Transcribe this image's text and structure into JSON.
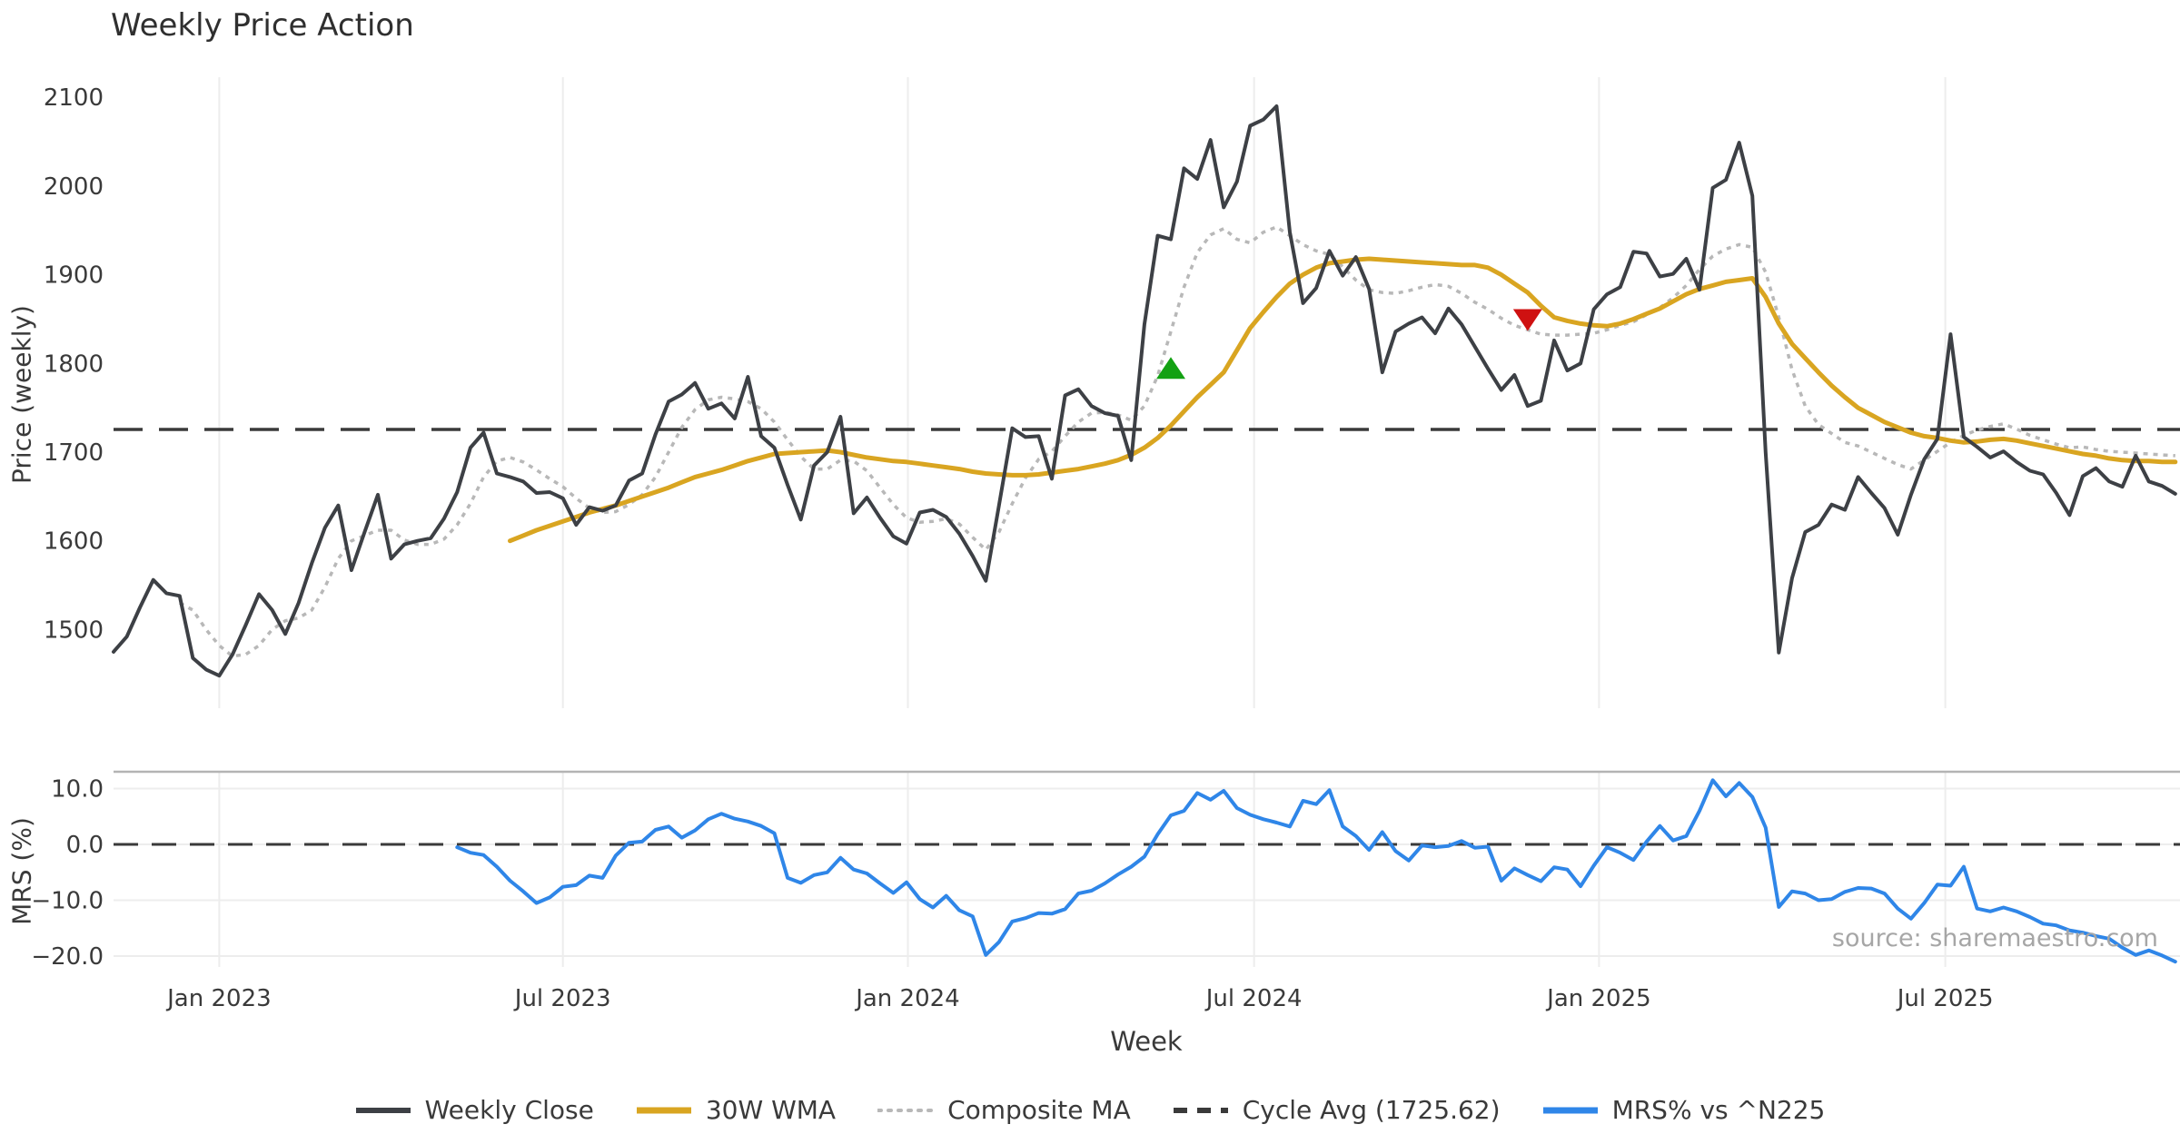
{
  "title": "Weekly Price Action",
  "source": "source: sharemaestro.com",
  "x_axis": {
    "label": "Week",
    "ticks": [
      {
        "label": "Jan 2023",
        "week": 0
      },
      {
        "label": "Jul 2023",
        "week": 26
      },
      {
        "label": "Jan 2024",
        "week": 52.1
      },
      {
        "label": "Jul 2024",
        "week": 78.3
      },
      {
        "label": "Jan 2025",
        "week": 104.4
      },
      {
        "label": "Jul 2025",
        "week": 130.6
      }
    ]
  },
  "legend": {
    "items": [
      {
        "label": "Weekly Close",
        "color": "#3d4045",
        "style": "solid"
      },
      {
        "label": "30W WMA",
        "color": "#d9a521",
        "style": "solid"
      },
      {
        "label": "Composite MA",
        "color": "#b8b8b8",
        "style": "dotted"
      },
      {
        "label": "Cycle Avg (1725.62)",
        "color": "#3a3a3a",
        "style": "dashed"
      },
      {
        "label": "MRS% vs ^N225",
        "color": "#2f86e8",
        "style": "solid"
      }
    ]
  },
  "colors": {
    "close": "#3d4045",
    "wma": "#d9a521",
    "composite": "#b8b8b8",
    "cycle": "#3a3a3a",
    "mrs": "#2f86e8",
    "buy_marker": "#13a113",
    "sell_marker": "#cf1111",
    "gridline": "#ededed",
    "spine": "#b4b4b4",
    "tick_text": "#3a3a3a"
  },
  "chart_data": [
    {
      "type": "line",
      "panel": "price",
      "title": "Weekly Price Action",
      "ylabel": "Price (weekly)",
      "ylim": [
        1411,
        2122
      ],
      "yticks": [
        {
          "v": 2100,
          "label": "2100"
        },
        {
          "v": 2000,
          "label": "2000"
        },
        {
          "v": 1900,
          "label": "1900"
        },
        {
          "v": 1800,
          "label": "1800"
        },
        {
          "v": 1700,
          "label": "1700"
        },
        {
          "v": 1600,
          "label": "1600"
        },
        {
          "v": 1500,
          "label": "1500"
        }
      ],
      "x_unit": "week index (0 = Jan 2023 tick)",
      "xlim": [
        -8,
        148
      ],
      "grid": "vertical-only",
      "series": [
        {
          "name": "Weekly Close",
          "style": "solid",
          "color": "#3d4045",
          "start_week": -8,
          "values": [
            1475,
            1492,
            1525,
            1556,
            1541,
            1538,
            1468,
            1455,
            1448,
            1472,
            1505,
            1540,
            1522,
            1495,
            1530,
            1575,
            1615,
            1640,
            1567,
            1610,
            1652,
            1580,
            1596,
            1600,
            1603,
            1625,
            1655,
            1705,
            1722,
            1676,
            1672,
            1667,
            1654,
            1655,
            1648,
            1618,
            1638,
            1634,
            1640,
            1668,
            1676,
            1720,
            1757,
            1765,
            1778,
            1749,
            1755,
            1738,
            1785,
            1718,
            1705,
            1663,
            1624,
            1685,
            1700,
            1740,
            1631,
            1649,
            1626,
            1605,
            1597,
            1632,
            1635,
            1627,
            1608,
            1583,
            1555,
            1640,
            1727,
            1717,
            1718,
            1670,
            1764,
            1771,
            1752,
            1744,
            1741,
            1691,
            1844,
            1944,
            1940,
            2020,
            2008,
            2052,
            1976,
            2005,
            2068,
            2075,
            2090,
            1948,
            1868,
            1885,
            1927,
            1899,
            1920,
            1884,
            1790,
            1836,
            1845,
            1852,
            1834,
            1862,
            1844,
            1819,
            1794,
            1770,
            1787,
            1752,
            1758,
            1826,
            1792,
            1800,
            1861,
            1878,
            1886,
            1926,
            1924,
            1898,
            1901,
            1918,
            1883,
            1998,
            2007,
            2049,
            1989,
            1700,
            1474,
            1558,
            1610,
            1618,
            1641,
            1635,
            1672,
            1654,
            1637,
            1607,
            1652,
            1692,
            1715,
            1833,
            1717,
            1706,
            1694,
            1701,
            1689,
            1679,
            1675,
            1654,
            1629,
            1673,
            1682,
            1667,
            1661,
            1696,
            1667,
            1662,
            1653
          ]
        },
        {
          "name": "30W WMA",
          "style": "solid",
          "color": "#d9a521",
          "start_week": 22,
          "values": [
            1600,
            1606,
            1612,
            1617,
            1622,
            1627,
            1632,
            1636,
            1640,
            1645,
            1650,
            1655,
            1660,
            1666,
            1672,
            1676,
            1680,
            1685,
            1690,
            1694,
            1698,
            1699,
            1700,
            1701,
            1702,
            1700,
            1697,
            1694,
            1692,
            1690,
            1689,
            1687,
            1685,
            1683,
            1681,
            1678,
            1676,
            1675,
            1674,
            1674,
            1675,
            1677,
            1679,
            1681,
            1684,
            1687,
            1691,
            1697,
            1705,
            1716,
            1730,
            1746,
            1762,
            1776,
            1790,
            1815,
            1840,
            1858,
            1875,
            1890,
            1900,
            1908,
            1913,
            1915,
            1917,
            1918,
            1917,
            1916,
            1915,
            1914,
            1913,
            1912,
            1911,
            1911,
            1908,
            1900,
            1890,
            1880,
            1865,
            1852,
            1848,
            1845,
            1843,
            1842,
            1845,
            1850,
            1856,
            1862,
            1870,
            1878,
            1884,
            1888,
            1892,
            1894,
            1896,
            1875,
            1845,
            1822,
            1806,
            1790,
            1775,
            1762,
            1750,
            1742,
            1734,
            1728,
            1722,
            1718,
            1716,
            1713,
            1711,
            1712,
            1714,
            1715,
            1713,
            1710,
            1707,
            1704,
            1701,
            1698,
            1696,
            1693,
            1691,
            1690,
            1690,
            1689,
            1689
          ]
        },
        {
          "name": "Composite MA",
          "style": "dotted",
          "color": "#b8b8b8",
          "start_week": -3,
          "values": [
            1530,
            1522,
            1500,
            1482,
            1470,
            1472,
            1482,
            1500,
            1510,
            1513,
            1522,
            1548,
            1580,
            1600,
            1606,
            1612,
            1612,
            1601,
            1596,
            1596,
            1602,
            1618,
            1642,
            1672,
            1690,
            1694,
            1689,
            1680,
            1670,
            1661,
            1648,
            1637,
            1632,
            1633,
            1641,
            1652,
            1672,
            1700,
            1728,
            1748,
            1759,
            1762,
            1760,
            1757,
            1749,
            1734,
            1714,
            1695,
            1681,
            1681,
            1691,
            1690,
            1679,
            1660,
            1641,
            1626,
            1621,
            1622,
            1625,
            1619,
            1604,
            1590,
            1610,
            1642,
            1671,
            1692,
            1701,
            1718,
            1734,
            1744,
            1745,
            1742,
            1736,
            1752,
            1786,
            1836,
            1886,
            1925,
            1945,
            1952,
            1940,
            1936,
            1948,
            1954,
            1944,
            1934,
            1927,
            1923,
            1909,
            1894,
            1883,
            1880,
            1879,
            1882,
            1886,
            1889,
            1887,
            1879,
            1869,
            1861,
            1851,
            1843,
            1838,
            1833,
            1832,
            1832,
            1833,
            1834,
            1838,
            1843,
            1847,
            1855,
            1863,
            1874,
            1888,
            1906,
            1921,
            1929,
            1934,
            1931,
            1903,
            1852,
            1793,
            1752,
            1731,
            1721,
            1711,
            1707,
            1700,
            1693,
            1686,
            1681,
            1691,
            1701,
            1711,
            1719,
            1725,
            1729,
            1732,
            1726,
            1719,
            1714,
            1709,
            1705,
            1706,
            1703,
            1701,
            1700,
            1699,
            1698,
            1697,
            1696
          ]
        },
        {
          "name": "Cycle Avg",
          "style": "dashed",
          "color": "#3a3a3a",
          "constant": 1725.62
        }
      ],
      "markers": [
        {
          "shape": "triangle-up",
          "name": "buy-signal",
          "color": "#13a113",
          "week": 72,
          "value": 1795
        },
        {
          "shape": "triangle-down",
          "name": "sell-signal",
          "color": "#cf1111",
          "week": 99,
          "value": 1849
        }
      ]
    },
    {
      "type": "line",
      "panel": "mrs",
      "ylabel": "MRS (%)",
      "ylim": [
        -22,
        13
      ],
      "yticks": [
        {
          "v": 10,
          "label": "10.0"
        },
        {
          "v": 0,
          "label": "0.0"
        },
        {
          "v": -10,
          "label": "−10.0"
        },
        {
          "v": -20,
          "label": "−20.0"
        }
      ],
      "x_unit": "week index (0 = Jan 2023 tick)",
      "xlim": [
        -8,
        148
      ],
      "grid": "horizontal-and-vertical",
      "series": [
        {
          "name": "MRS% vs ^N225",
          "style": "solid",
          "color": "#2f86e8",
          "start_week": 18,
          "values": [
            -0.5,
            -1.5,
            -1.9,
            -4.0,
            -6.5,
            -8.4,
            -10.5,
            -9.5,
            -7.6,
            -7.3,
            -5.6,
            -6.0,
            -2.0,
            0.3,
            0.5,
            2.6,
            3.2,
            1.2,
            2.5,
            4.5,
            5.5,
            4.6,
            4.1,
            3.3,
            2.0,
            -6.0,
            -6.9,
            -5.5,
            -5.0,
            -2.4,
            -4.5,
            -5.2,
            -7.0,
            -8.7,
            -6.8,
            -9.8,
            -11.3,
            -9.2,
            -11.8,
            -12.9,
            -19.8,
            -17.5,
            -13.8,
            -13.2,
            -12.3,
            -12.4,
            -11.6,
            -8.8,
            -8.3,
            -7.0,
            -5.4,
            -4.0,
            -2.2,
            1.8,
            5.2,
            6.0,
            9.2,
            8.0,
            9.6,
            6.5,
            5.3,
            4.5,
            3.9,
            3.2,
            7.8,
            7.2,
            9.7,
            3.2,
            1.5,
            -1.0,
            2.2,
            -1.2,
            -2.9,
            -0.2,
            -0.5,
            -0.3,
            0.6,
            -0.6,
            -0.4,
            -6.5,
            -4.3,
            -5.5,
            -6.6,
            -4.1,
            -4.5,
            -7.5,
            -3.8,
            -0.5,
            -1.5,
            -2.8,
            0.5,
            3.3,
            0.7,
            1.5,
            6.0,
            11.5,
            8.6,
            11.0,
            8.5,
            3.0,
            -11.2,
            -8.4,
            -8.8,
            -10.0,
            -9.8,
            -8.5,
            -7.8,
            -7.9,
            -8.8,
            -11.5,
            -13.3,
            -10.5,
            -7.2,
            -7.4,
            -4.0,
            -11.5,
            -12.0,
            -11.3,
            -12.0,
            -13.0,
            -14.2,
            -14.5,
            -15.4,
            -15.8,
            -16.4,
            -16.9,
            -18.5,
            -19.8,
            -19.0,
            -19.9,
            -21.0
          ]
        },
        {
          "name": "Zero line",
          "style": "dashed",
          "color": "#3a3a3a",
          "constant": 0
        }
      ]
    }
  ]
}
